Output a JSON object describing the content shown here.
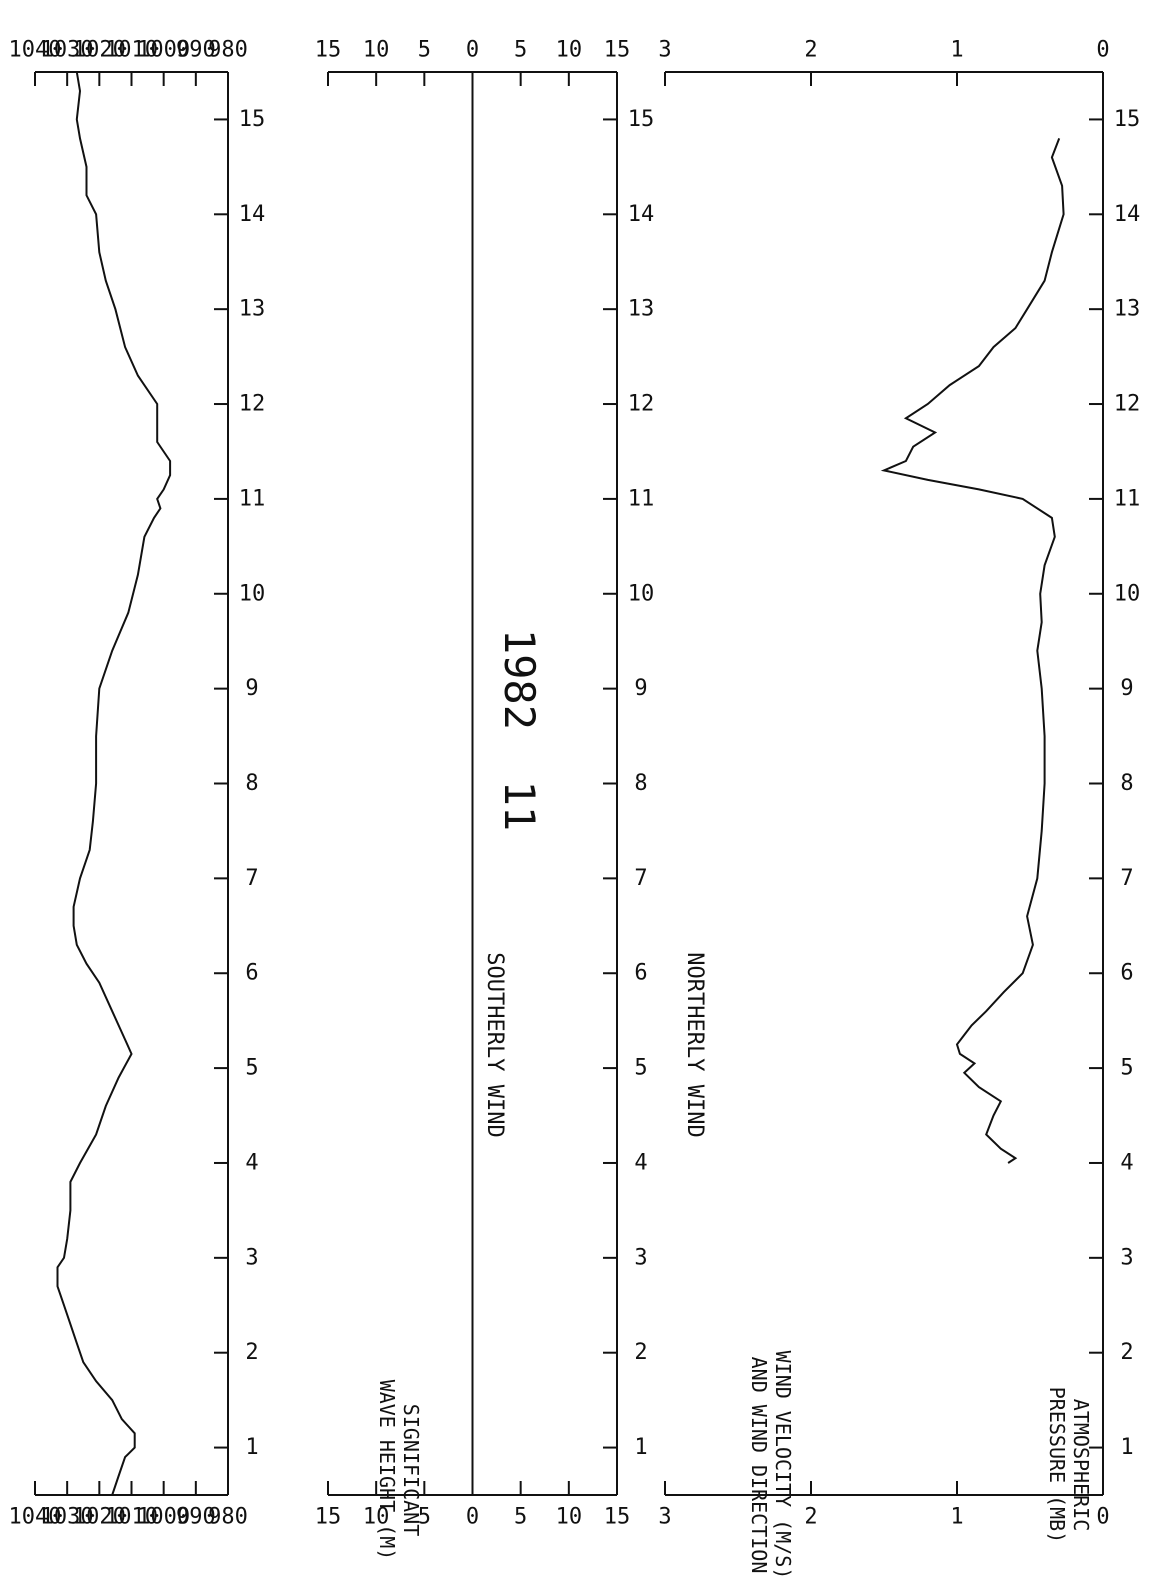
{
  "figure_label": "1982  11",
  "chart_data": [
    {
      "type": "line",
      "panel": "pressure",
      "ylabel_lines": [
        "ATMOSPHERIC",
        "PRESSURE (MB)"
      ],
      "ylim": [
        980,
        1040
      ],
      "yticks": [
        "1040",
        "1030",
        "1020",
        "1010",
        "1000",
        "990",
        "980"
      ],
      "xlim": [
        0.5,
        15.5
      ],
      "xticks": [
        "1",
        "2",
        "3",
        "4",
        "5",
        "6",
        "7",
        "8",
        "9",
        "10",
        "11",
        "12",
        "13",
        "14",
        "15"
      ],
      "x": [
        0.5,
        0.7,
        0.9,
        1.0,
        1.15,
        1.3,
        1.5,
        1.7,
        1.9,
        2.1,
        2.3,
        2.5,
        2.7,
        2.9,
        3.0,
        3.2,
        3.5,
        3.8,
        4.0,
        4.3,
        4.6,
        4.9,
        5.15,
        5.3,
        5.6,
        5.9,
        6.1,
        6.3,
        6.5,
        6.7,
        7.0,
        7.3,
        7.6,
        8.0,
        8.5,
        9.0,
        9.4,
        9.8,
        10.2,
        10.6,
        10.8,
        10.9,
        11.0,
        11.1,
        11.25,
        11.4,
        11.6,
        12.0,
        12.3,
        12.6,
        13.0,
        13.3,
        13.6,
        14.0,
        14.2,
        14.5,
        14.8,
        15.0,
        15.3,
        15.5
      ],
      "y": [
        1016,
        1014,
        1012,
        1009,
        1009,
        1013,
        1016,
        1021,
        1025,
        1027,
        1029,
        1031,
        1033,
        1033,
        1031,
        1030,
        1029,
        1029,
        1026,
        1021,
        1018,
        1014,
        1010,
        1012,
        1016,
        1020,
        1024,
        1027,
        1028,
        1028,
        1026,
        1023,
        1022,
        1021,
        1021,
        1020,
        1016,
        1011,
        1008,
        1006,
        1003,
        1001,
        1002,
        1000,
        998,
        998,
        1002,
        1002,
        1008,
        1012,
        1015,
        1018,
        1020,
        1021,
        1024,
        1024,
        1026,
        1027,
        1026,
        1027
      ]
    },
    {
      "type": "wind-stick",
      "panel": "wind",
      "ylabel_lines": [
        "WIND VELOCITY (M/S)",
        "AND WIND DIRECTION"
      ],
      "ylim": [
        -15,
        15
      ],
      "yticks": [
        "15",
        "10",
        "5",
        "0",
        "5",
        "10",
        "15"
      ],
      "annotations": [
        "NORTHERLY WIND",
        "SOUTHERLY WIND"
      ],
      "xlim": [
        0.5,
        15.5
      ],
      "xticks": [
        "1",
        "2",
        "3",
        "4",
        "5",
        "6",
        "7",
        "8",
        "9",
        "10",
        "11",
        "12",
        "13",
        "14",
        "15"
      ]
    },
    {
      "type": "line",
      "panel": "wave",
      "ylabel_lines": [
        "SIGNIFICANT",
        "WAVE HEIGHT (M)"
      ],
      "ylim": [
        0,
        3
      ],
      "yticks": [
        "3",
        "2",
        "1",
        "0"
      ],
      "xlim": [
        0.5,
        15.5
      ],
      "xticks": [
        "1",
        "2",
        "3",
        "4",
        "5",
        "6",
        "7",
        "8",
        "9",
        "10",
        "11",
        "12",
        "13",
        "14",
        "15"
      ],
      "x": [
        4.0,
        4.05,
        4.15,
        4.3,
        4.5,
        4.65,
        4.8,
        4.95,
        5.05,
        5.15,
        5.25,
        5.35,
        5.45,
        5.6,
        5.8,
        6.0,
        6.3,
        6.6,
        7.0,
        7.5,
        8.0,
        8.5,
        9.0,
        9.4,
        9.7,
        10.0,
        10.3,
        10.6,
        10.8,
        11.0,
        11.1,
        11.2,
        11.3,
        11.4,
        11.55,
        11.7,
        11.85,
        12.0,
        12.2,
        12.4,
        12.6,
        12.8,
        13.0,
        13.3,
        13.6,
        14.0,
        14.3,
        14.6,
        14.8
      ],
      "y": [
        0.65,
        0.6,
        0.7,
        0.8,
        0.75,
        0.7,
        0.85,
        0.95,
        0.88,
        0.98,
        1.0,
        0.95,
        0.9,
        0.8,
        0.68,
        0.55,
        0.48,
        0.52,
        0.45,
        0.42,
        0.4,
        0.4,
        0.42,
        0.45,
        0.42,
        0.43,
        0.4,
        0.33,
        0.35,
        0.55,
        0.85,
        1.2,
        1.5,
        1.35,
        1.3,
        1.15,
        1.35,
        1.2,
        1.05,
        0.85,
        0.75,
        0.6,
        0.52,
        0.4,
        0.35,
        0.27,
        0.28,
        0.35,
        0.3
      ]
    }
  ]
}
